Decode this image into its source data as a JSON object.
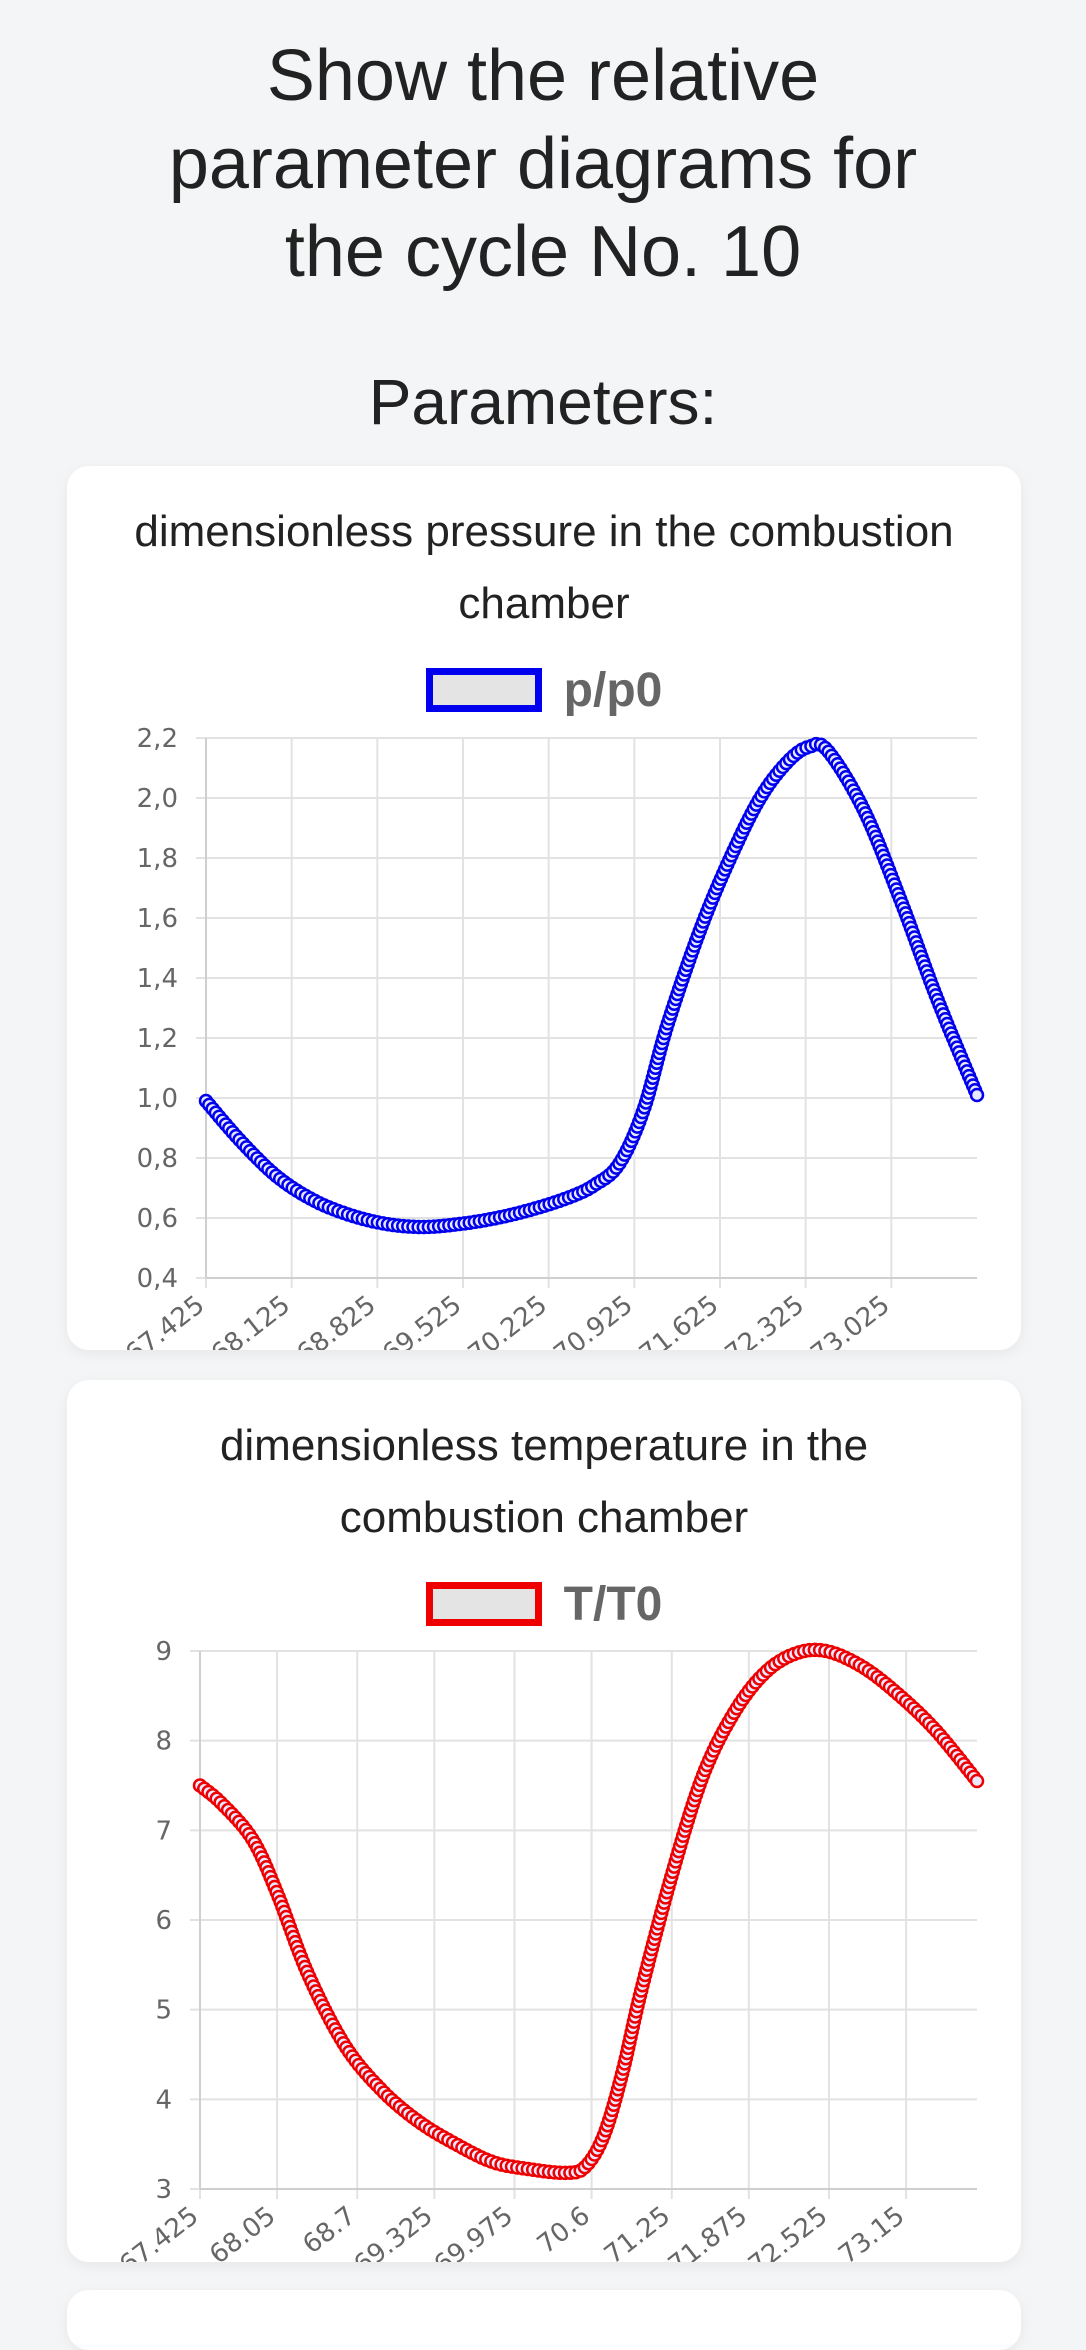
{
  "page": {
    "title_line1": "Show the relative",
    "title_line2": "parameter diagrams for",
    "title_line3": "the cycle No. 10",
    "section_title": "Parameters:"
  },
  "chart_data": [
    {
      "type": "line",
      "title_line1": "dimensionless pressure in the combustion",
      "title_line2": "chamber",
      "legend": "p/p0",
      "color": "#0000ee",
      "x_ticks": [
        "67.425",
        "68.125",
        "68.825",
        "69.525",
        "70.225",
        "70.925",
        "71.625",
        "72.325",
        "73.025"
      ],
      "y_ticks": [
        "0,4",
        "0,6",
        "0,8",
        "1,0",
        "1,2",
        "1,4",
        "1,6",
        "1,8",
        "2,0",
        "2,2"
      ],
      "xlim": [
        67.425,
        73.725
      ],
      "ylim": [
        0.4,
        2.2
      ],
      "x": [
        67.425,
        67.7,
        68.0,
        68.3,
        68.6,
        68.9,
        69.2,
        69.5,
        69.8,
        70.1,
        70.4,
        70.6,
        70.8,
        71.0,
        71.2,
        71.5,
        71.8,
        72.0,
        72.2,
        72.35,
        72.5,
        72.8,
        73.1,
        73.4,
        73.725
      ],
      "y": [
        0.99,
        0.86,
        0.74,
        0.66,
        0.61,
        0.58,
        0.57,
        0.58,
        0.6,
        0.63,
        0.67,
        0.71,
        0.78,
        0.96,
        1.25,
        1.6,
        1.88,
        2.03,
        2.13,
        2.17,
        2.16,
        1.96,
        1.66,
        1.33,
        1.01
      ]
    },
    {
      "type": "line",
      "title_line1": "dimensionless temperature in the",
      "title_line2": "combustion chamber",
      "legend": "T/T0",
      "color": "#ee0000",
      "x_ticks": [
        "67.425",
        "68.05",
        "68.7",
        "69.325",
        "69.975",
        "70.6",
        "71.25",
        "71.875",
        "72.525",
        "73.15"
      ],
      "y_ticks": [
        "3",
        "4",
        "5",
        "6",
        "7",
        "8",
        "9"
      ],
      "xlim": [
        67.425,
        73.725
      ],
      "ylim": [
        3,
        9
      ],
      "x": [
        67.425,
        67.6,
        67.85,
        68.05,
        68.3,
        68.6,
        68.9,
        69.2,
        69.5,
        69.8,
        70.1,
        70.4,
        70.55,
        70.7,
        70.85,
        71.0,
        71.25,
        71.5,
        71.75,
        72.0,
        72.25,
        72.5,
        72.8,
        73.1,
        73.4,
        73.725
      ],
      "y": [
        7.5,
        7.3,
        6.9,
        6.3,
        5.4,
        4.6,
        4.1,
        3.75,
        3.5,
        3.3,
        3.22,
        3.18,
        3.25,
        3.6,
        4.3,
        5.2,
        6.5,
        7.6,
        8.3,
        8.75,
        8.97,
        9.0,
        8.82,
        8.5,
        8.1,
        7.55
      ]
    }
  ]
}
